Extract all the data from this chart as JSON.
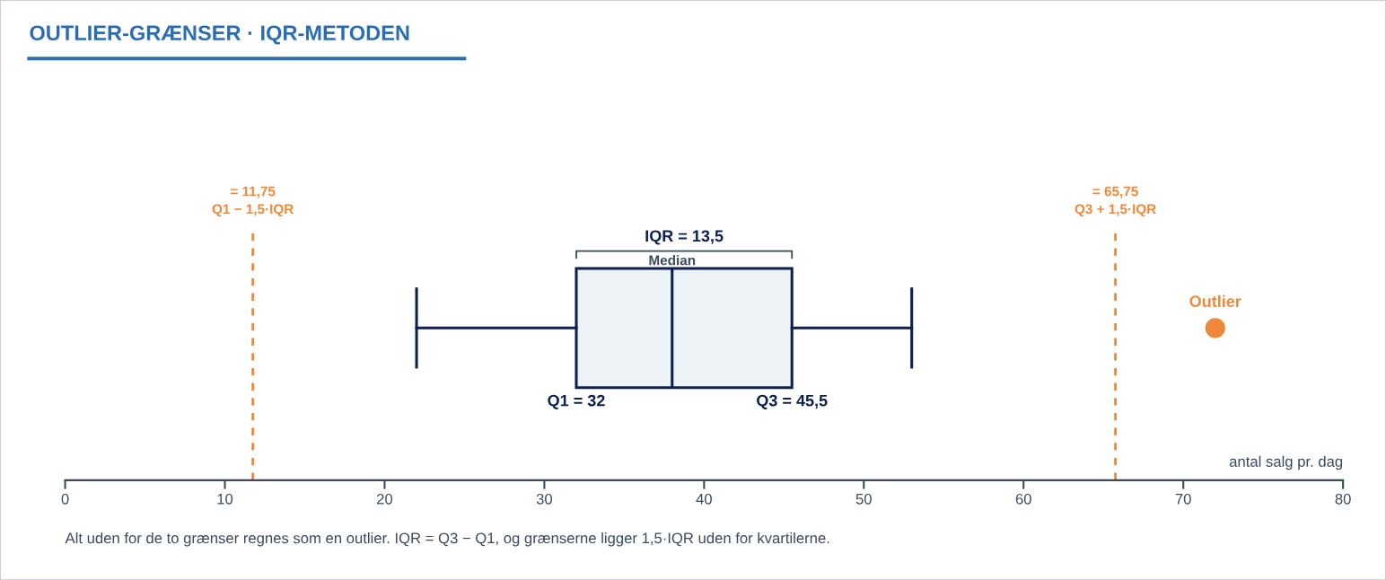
{
  "chart_data": {
    "type": "box",
    "title": "OUTLIER-GRÆNSER · IQR-METODEN",
    "xlabel": "antal salg pr. dag",
    "orientation": "horizontal",
    "categories": [
      null
    ],
    "tick_labels": "x",
    "grid": false,
    "series": [
      {
        "color": "#0d2150",
        "boxes": [
          {
            "low": 22,
            "q1": 32,
            "median": 38,
            "q3": 45.5,
            "high": 53,
            "outliers": [
              72
            ]
          }
        ]
      }
    ],
    "xlim": [
      0,
      80
    ],
    "xticks": [
      0,
      10,
      20,
      30,
      40,
      50,
      60,
      70,
      80
    ],
    "ref_lines": [
      {
        "axis": "x",
        "value": 11.75,
        "label": "= 11,75\nQ1 − 1,5·IQR",
        "color": "#f0883a",
        "line_style": "dashed"
      },
      {
        "axis": "x",
        "value": 65.75,
        "label": "= 65,75\nQ3 + 1,5·IQR",
        "color": "#f0883a",
        "line_style": "dashed"
      }
    ],
    "annotations": [
      "IQR = 13,5",
      "Median",
      "Q1 = 32",
      "Q3 = 45,5",
      "Outlier",
      "Alt uden for de to grænser regnes som en outlier. IQR = Q3 − Q1, og grænserne ligger 1,5·IQR uden for kvartilerne."
    ]
  }
}
